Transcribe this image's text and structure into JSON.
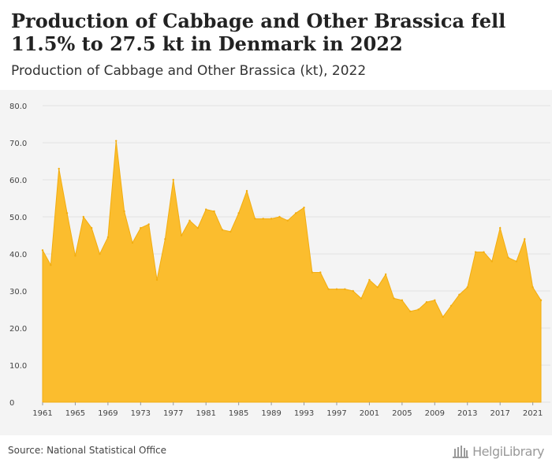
{
  "header": {
    "title": "Production of Cabbage and Other Brassica fell 11.5% to 27.5 kt in Denmark in 2022",
    "subtitle": "Production of Cabbage and Other Brassica (kt), 2022"
  },
  "footer": {
    "source": "Source: National Statistical Office",
    "logo_text": "HelgiLibrary"
  },
  "colors": {
    "area_fill": "#fbbd2e",
    "area_stroke": "#f2ad10",
    "grid": "#e2e2e2",
    "plot_background": "#f4f4f4"
  },
  "chart_data": {
    "type": "area",
    "title": "Production of Cabbage and Other Brassica (kt), 2022",
    "xlabel": "",
    "ylabel": "",
    "ylim": [
      0,
      80
    ],
    "xlim": [
      1961,
      2022
    ],
    "grid": true,
    "yticks": [
      "0",
      "10.0",
      "20.0",
      "30.0",
      "40.0",
      "50.0",
      "60.0",
      "70.0",
      "80.0"
    ],
    "xticks": [
      1961,
      1965,
      1969,
      1973,
      1977,
      1981,
      1985,
      1989,
      1993,
      1997,
      2001,
      2005,
      2009,
      2013,
      2017,
      2021
    ],
    "x": [
      1961,
      1962,
      1963,
      1964,
      1965,
      1966,
      1967,
      1968,
      1969,
      1970,
      1971,
      1972,
      1973,
      1974,
      1975,
      1976,
      1977,
      1978,
      1979,
      1980,
      1981,
      1982,
      1983,
      1984,
      1985,
      1986,
      1987,
      1988,
      1989,
      1990,
      1991,
      1992,
      1993,
      1994,
      1995,
      1996,
      1997,
      1998,
      1999,
      2000,
      2001,
      2002,
      2003,
      2004,
      2005,
      2006,
      2007,
      2008,
      2009,
      2010,
      2011,
      2012,
      2013,
      2014,
      2015,
      2016,
      2017,
      2018,
      2019,
      2020,
      2021,
      2022
    ],
    "values": [
      41.0,
      37.0,
      63.0,
      51.0,
      39.5,
      50.0,
      47.0,
      40.0,
      44.5,
      70.5,
      51.5,
      43.0,
      47.0,
      48.0,
      33.0,
      44.0,
      60.0,
      45.0,
      49.0,
      47.0,
      52.0,
      51.5,
      46.5,
      46.0,
      51.0,
      57.0,
      49.5,
      49.5,
      49.5,
      50.0,
      49.0,
      51.0,
      52.5,
      35.0,
      35.0,
      30.5,
      30.5,
      30.5,
      30.0,
      28.0,
      33.0,
      31.0,
      34.5,
      28.0,
      27.5,
      24.5,
      25.0,
      27.0,
      27.5,
      23.0,
      26.0,
      29.0,
      31.0,
      40.5,
      40.5,
      38.0,
      47.0,
      39.0,
      38.0,
      44.0,
      31.0,
      27.5
    ]
  }
}
